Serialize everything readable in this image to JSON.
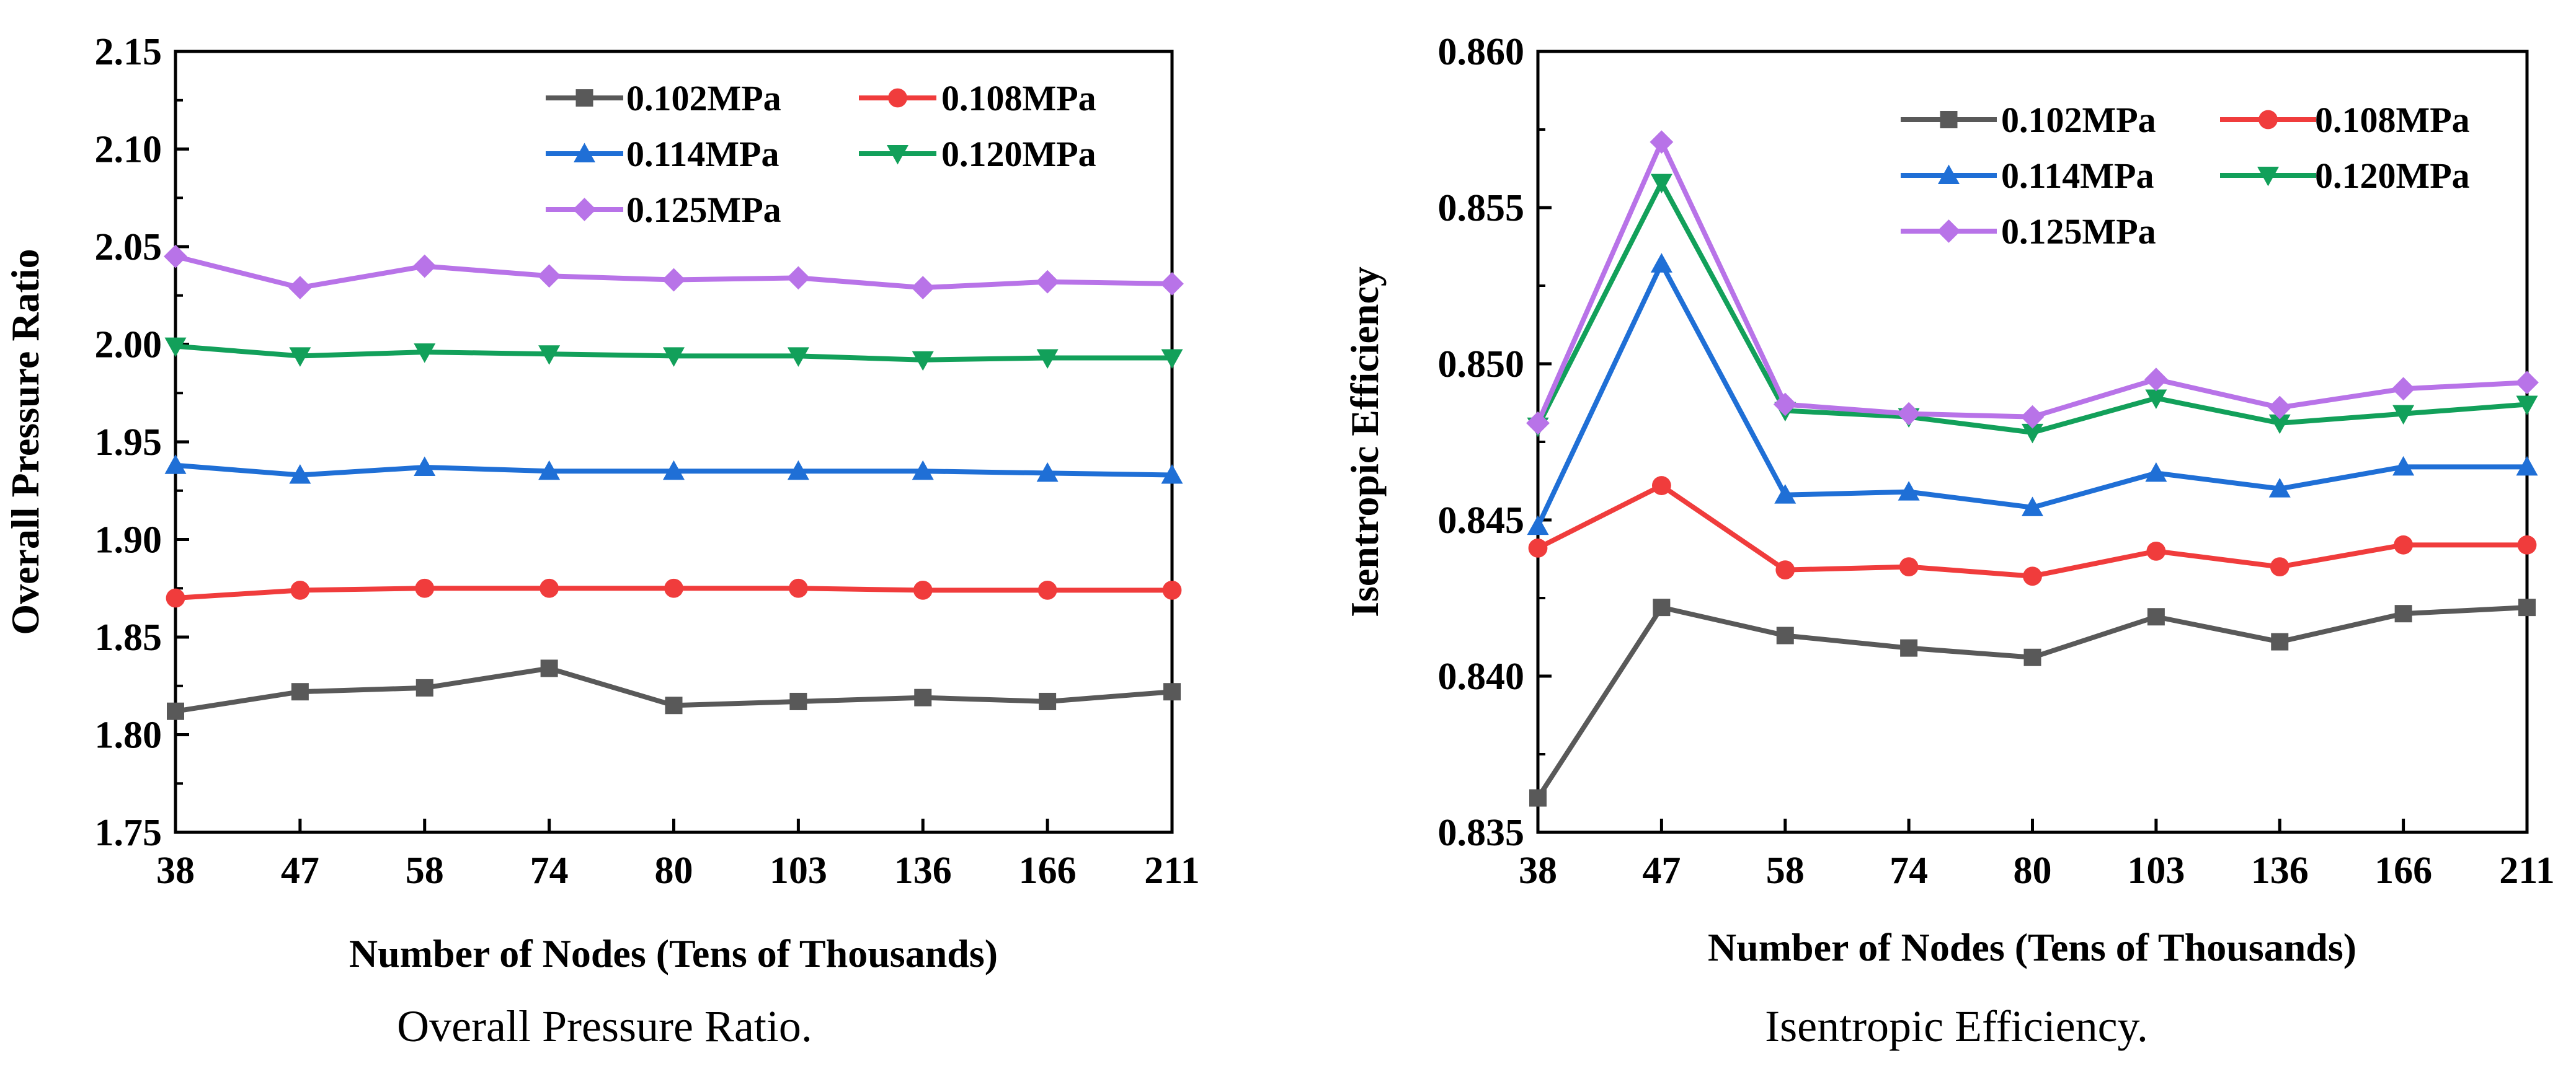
{
  "chart_data": [
    {
      "type": "line",
      "caption": "Overall Pressure Ratio.",
      "xlabel": "Number of Nodes (Tens of Thousands)",
      "ylabel": "Overall Pressure Ratio",
      "categories": [
        "38",
        "47",
        "58",
        "74",
        "80",
        "103",
        "136",
        "166",
        "211"
      ],
      "ylim": [
        1.75,
        2.15
      ],
      "yticks": [
        "1.75",
        "1.80",
        "1.85",
        "1.90",
        "1.95",
        "2.00",
        "2.05",
        "2.10",
        "2.15"
      ],
      "legend_position": "top-right",
      "series": [
        {
          "name": "0.102MPa",
          "color": "#595959",
          "marker": "square",
          "values": [
            1.812,
            1.822,
            1.824,
            1.834,
            1.815,
            1.817,
            1.819,
            1.817,
            1.822
          ]
        },
        {
          "name": "0.108MPa",
          "color": "#f03c3c",
          "marker": "circle",
          "values": [
            1.87,
            1.874,
            1.875,
            1.875,
            1.875,
            1.875,
            1.874,
            1.874,
            1.874
          ]
        },
        {
          "name": "0.114MPa",
          "color": "#1f6fd6",
          "marker": "triangle-up",
          "values": [
            1.938,
            1.933,
            1.937,
            1.935,
            1.935,
            1.935,
            1.935,
            1.934,
            1.933
          ]
        },
        {
          "name": "0.120MPa",
          "color": "#12a05a",
          "marker": "triangle-down",
          "values": [
            1.999,
            1.994,
            1.996,
            1.995,
            1.994,
            1.994,
            1.992,
            1.993,
            1.993
          ]
        },
        {
          "name": "0.125MPa",
          "color": "#b873e8",
          "marker": "diamond",
          "values": [
            2.045,
            2.029,
            2.04,
            2.035,
            2.033,
            2.034,
            2.029,
            2.032,
            2.031
          ]
        }
      ]
    },
    {
      "type": "line",
      "caption": "Isentropic Efficiency.",
      "xlabel": "Number of Nodes (Tens of Thousands)",
      "ylabel": "Isentropic Efficiency",
      "categories": [
        "38",
        "47",
        "58",
        "74",
        "80",
        "103",
        "136",
        "166",
        "211"
      ],
      "ylim": [
        0.835,
        0.86
      ],
      "yticks": [
        "0.835",
        "0.840",
        "0.845",
        "0.850",
        "0.855",
        "0.860"
      ],
      "legend_position": "top-right",
      "series": [
        {
          "name": "0.102MPa",
          "color": "#595959",
          "marker": "square",
          "values": [
            0.8361,
            0.8422,
            0.8413,
            0.8409,
            0.8406,
            0.8419,
            0.8411,
            0.842,
            0.8422
          ]
        },
        {
          "name": "0.108MPa",
          "color": "#f03c3c",
          "marker": "circle",
          "values": [
            0.8441,
            0.8461,
            0.8434,
            0.8435,
            0.8432,
            0.844,
            0.8435,
            0.8442,
            0.8442
          ]
        },
        {
          "name": "0.114MPa",
          "color": "#1f6fd6",
          "marker": "triangle-up",
          "values": [
            0.8448,
            0.8532,
            0.8458,
            0.8459,
            0.8454,
            0.8465,
            0.846,
            0.8467,
            0.8467
          ]
        },
        {
          "name": "0.120MPa",
          "color": "#12a05a",
          "marker": "triangle-down",
          "values": [
            0.848,
            0.8558,
            0.8485,
            0.8483,
            0.8478,
            0.8489,
            0.8481,
            0.8484,
            0.8487
          ]
        },
        {
          "name": "0.125MPa",
          "color": "#b873e8",
          "marker": "diamond",
          "values": [
            0.8481,
            0.8571,
            0.8487,
            0.8484,
            0.8483,
            0.8495,
            0.8486,
            0.8492,
            0.8494
          ]
        }
      ]
    }
  ]
}
